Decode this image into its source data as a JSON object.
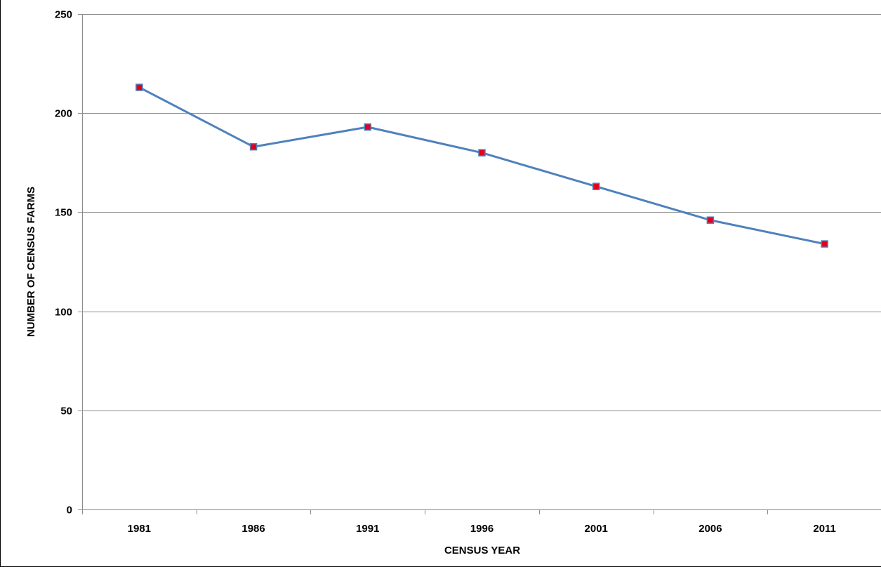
{
  "chart_data": {
    "type": "line",
    "x": [
      "1981",
      "1986",
      "1991",
      "1996",
      "2001",
      "2006",
      "2011"
    ],
    "series": [
      {
        "values": [
          213,
          183,
          193,
          180,
          163,
          146,
          134
        ]
      }
    ],
    "xlabel": "CENSUS YEAR",
    "ylabel": "NUMBER OF CENSUS FARMS",
    "ylim": [
      0,
      250
    ],
    "yticks": [
      0,
      50,
      100,
      150,
      200,
      250
    ],
    "grid": true,
    "legend": "none"
  },
  "colors": {
    "line": "#4f81bd",
    "marker_fill": "#e3001b",
    "marker_edge": "#4f81bd",
    "gridline": "#8c8c8c",
    "axis": "#8c8c8c"
  }
}
